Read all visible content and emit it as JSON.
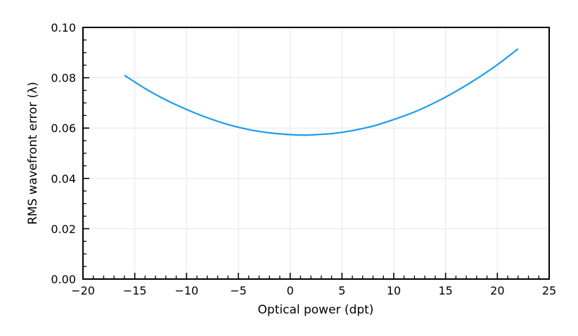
{
  "chart_data": {
    "type": "line",
    "title": "",
    "xlabel": "Optical power (dpt)",
    "ylabel": "RMS wavefront error (λ)",
    "xlim": [
      -20,
      25
    ],
    "ylim": [
      0,
      0.1
    ],
    "xticks": [
      -20,
      -15,
      -10,
      -5,
      0,
      5,
      10,
      15,
      20,
      25
    ],
    "xtick_labels": [
      "−20",
      "−15",
      "−10",
      "−5",
      "0",
      "5",
      "10",
      "15",
      "20",
      "25"
    ],
    "yticks": [
      0,
      0.02,
      0.04,
      0.06,
      0.08,
      0.1
    ],
    "ytick_labels": [
      "0.00",
      "0.02",
      "0.04",
      "0.06",
      "0.08",
      "0.10"
    ],
    "grid": true,
    "line_color": "#1a9cf0",
    "series": [
      {
        "x": [
          -16,
          -14,
          -12,
          -10,
          -8,
          -6,
          -4,
          -2,
          0,
          1.3,
          2,
          4,
          6,
          8,
          10,
          12,
          14,
          16,
          18,
          20,
          22
        ],
        "values": [
          0.081,
          0.0757,
          0.0712,
          0.0674,
          0.0641,
          0.0614,
          0.0594,
          0.0581,
          0.0574,
          0.0572,
          0.0573,
          0.0578,
          0.059,
          0.0608,
          0.0634,
          0.0664,
          0.0702,
          0.0746,
          0.0796,
          0.0852,
          0.0915
        ]
      }
    ]
  }
}
